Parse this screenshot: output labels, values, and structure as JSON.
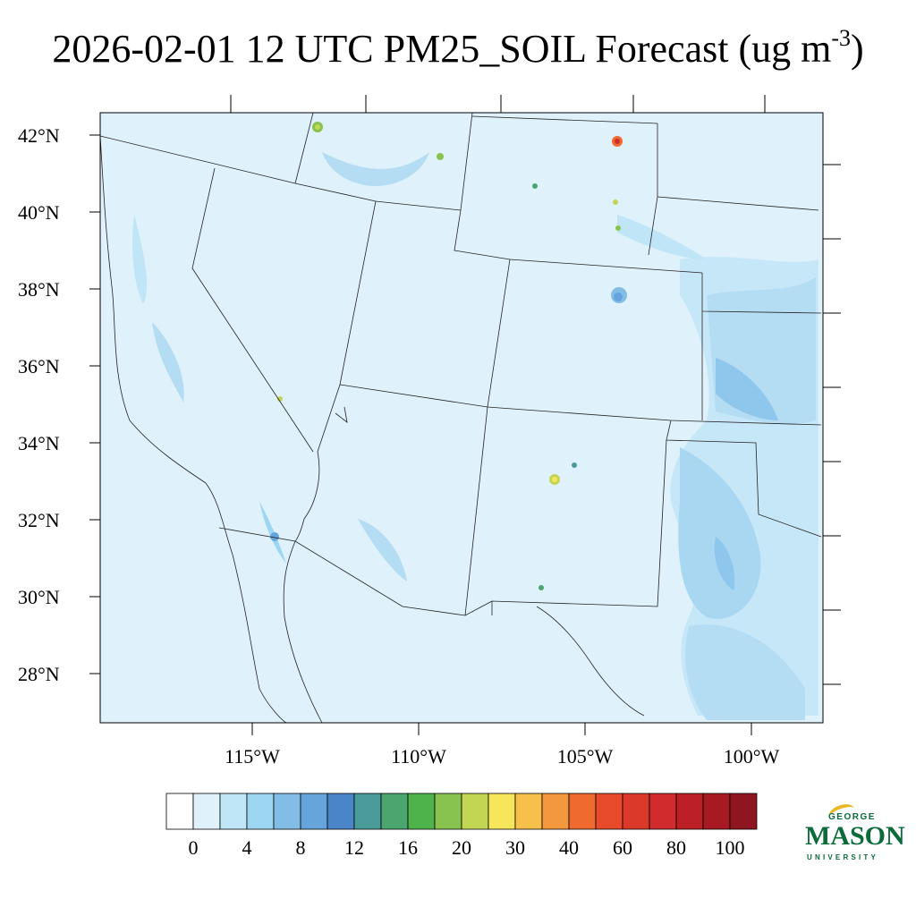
{
  "title": {
    "main": "2026-02-01 12 UTC PM25_SOIL Forecast (ug m",
    "sup": "-3",
    "close": ")"
  },
  "map": {
    "lat_labels": [
      "42°N",
      "40°N",
      "38°N",
      "36°N",
      "34°N",
      "32°N",
      "30°N",
      "28°N"
    ],
    "lon_labels": [
      "115°W",
      "110°W",
      "105°W",
      "100°W"
    ],
    "background_color": "#dff1fb",
    "light_color": "#c0e5f7",
    "mid_color": "#9bd5f3",
    "dark_color": "#6fa9dc"
  },
  "colorbar": {
    "colors": [
      "#ffffff",
      "#dff1fb",
      "#bfe6f6",
      "#9dd6f3",
      "#82bde6",
      "#66a4dc",
      "#4a86c7",
      "#4a9c9a",
      "#4aa56e",
      "#4db34a",
      "#88c24f",
      "#c3d654",
      "#f7e55c",
      "#f7c04a",
      "#f3983e",
      "#ef6a2e",
      "#e84a2c",
      "#db3a2a",
      "#d12b2d",
      "#bd1f26",
      "#a71a22",
      "#8f1620"
    ],
    "tick_labels": [
      "0",
      "4",
      "8",
      "12",
      "16",
      "20",
      "30",
      "40",
      "60",
      "80",
      "100"
    ]
  },
  "logo": {
    "line1": "GEORGE",
    "line2": "MASON",
    "line3": "UNIVERSITY"
  }
}
